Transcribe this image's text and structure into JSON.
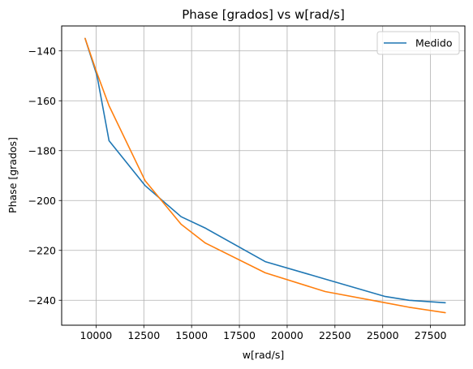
{
  "chart_data": {
    "type": "line",
    "title": "Phase [grados] vs w[rad/s]",
    "xlabel": "w[rad/s]",
    "ylabel": "Phase [grados]",
    "xlim": [
      8200,
      29300
    ],
    "ylim": [
      -250,
      -130
    ],
    "xticks": [
      10000,
      12500,
      15000,
      17500,
      20000,
      22500,
      25000,
      27500
    ],
    "yticks": [
      -140,
      -160,
      -180,
      -200,
      -220,
      -240
    ],
    "grid": true,
    "legend": {
      "location": "upper right"
    },
    "series": [
      {
        "name": "Medido",
        "color": "#1f77b4",
        "in_legend": true,
        "x": [
          9425,
          10053,
          10681,
          12566,
          14451,
          15708,
          18850,
          21991,
          25133,
          26389,
          28274
        ],
        "y": [
          -135,
          -150,
          -176,
          -194,
          -206.5,
          -211,
          -224.5,
          -231.5,
          -238.5,
          -240,
          -241
        ]
      },
      {
        "color": "#ff7f0e",
        "in_legend": false,
        "x": [
          9425,
          10053,
          10681,
          12566,
          14451,
          15708,
          18850,
          21991,
          25133,
          26389,
          28274
        ],
        "y": [
          -135,
          -149,
          -162,
          -192,
          -209.5,
          -217,
          -229,
          -236.5,
          -241,
          -242.8,
          -245
        ]
      }
    ]
  }
}
